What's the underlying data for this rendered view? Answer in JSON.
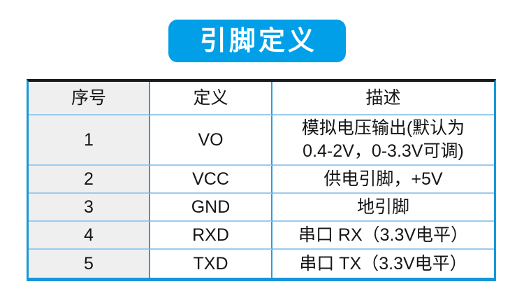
{
  "title": {
    "label": "引脚定义"
  },
  "table": {
    "columns": [
      "序号",
      "定义",
      "描述"
    ],
    "rows": [
      {
        "no": "1",
        "def": "VO",
        "desc": "模拟电压输出(默认为\n0.4-2V，0-3.3V可调)"
      },
      {
        "no": "2",
        "def": "VCC",
        "desc": "供电引脚，+5V"
      },
      {
        "no": "3",
        "def": "GND",
        "desc": "地引脚"
      },
      {
        "no": "4",
        "def": "RXD",
        "desc": "串口 RX（3.3V电平）"
      },
      {
        "no": "5",
        "def": "TXD",
        "desc": "串口 TX（3.3V电平）"
      }
    ]
  },
  "colors": {
    "badge_bg": "#019FE8",
    "badge_text": "#FFFFFF",
    "border_top": "#1A1A1A",
    "border_outer": "#1697DB",
    "grid_vertical": "#2E9BD8",
    "grid_horizontal": "#9CCBEE",
    "first_col_bg": "#EFEFEF",
    "text": "#151515"
  }
}
